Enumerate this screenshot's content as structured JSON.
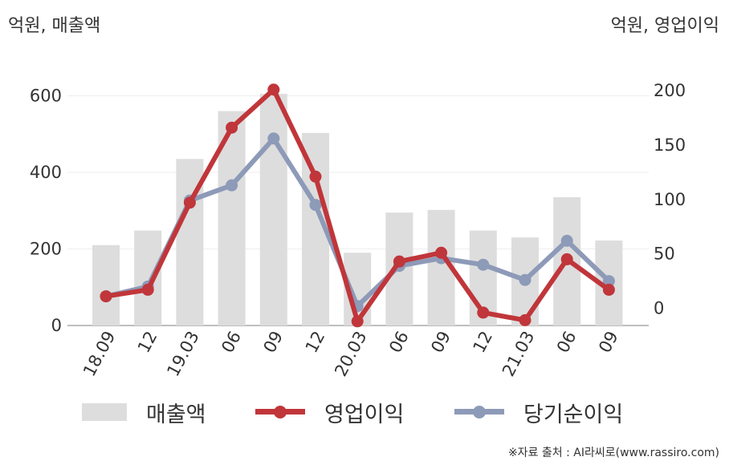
{
  "chart_data": {
    "type": "bar+line",
    "left_axis_unit": "억원, 매출액",
    "right_axis_unit": "억원, 영업이익",
    "categories": [
      "18.09",
      "12",
      "19.03",
      "06",
      "09",
      "12",
      "20.03",
      "06",
      "09",
      "12",
      "21.03",
      "06",
      "09"
    ],
    "left_axis": {
      "range": [
        0,
        720
      ],
      "ticks": [
        0,
        200,
        400,
        600
      ]
    },
    "right_axis": {
      "range": [
        -16,
        225
      ],
      "ticks": [
        0,
        50,
        100,
        150,
        200
      ]
    },
    "series": [
      {
        "name": "매출액",
        "type": "bar",
        "axis": "left",
        "color": "#dddddd",
        "values": [
          210,
          248,
          435,
          560,
          605,
          503,
          190,
          295,
          302,
          248,
          230,
          335,
          222
        ]
      },
      {
        "name": "영업이익",
        "type": "line",
        "axis": "right",
        "color": "#c0363a",
        "values": [
          11,
          17,
          97,
          166,
          201,
          121,
          -12,
          43,
          51,
          -4,
          -11,
          45,
          17
        ]
      },
      {
        "name": "당기순이익",
        "type": "line",
        "axis": "right",
        "color": "#8d9ab8",
        "values": [
          11,
          20,
          99,
          113,
          156,
          95,
          2,
          39,
          46,
          40,
          26,
          62,
          25
        ]
      }
    ],
    "grid": true,
    "legend_position": "bottom"
  },
  "source": "※자료 출처 : AI라씨로(www.rassiro.com)"
}
